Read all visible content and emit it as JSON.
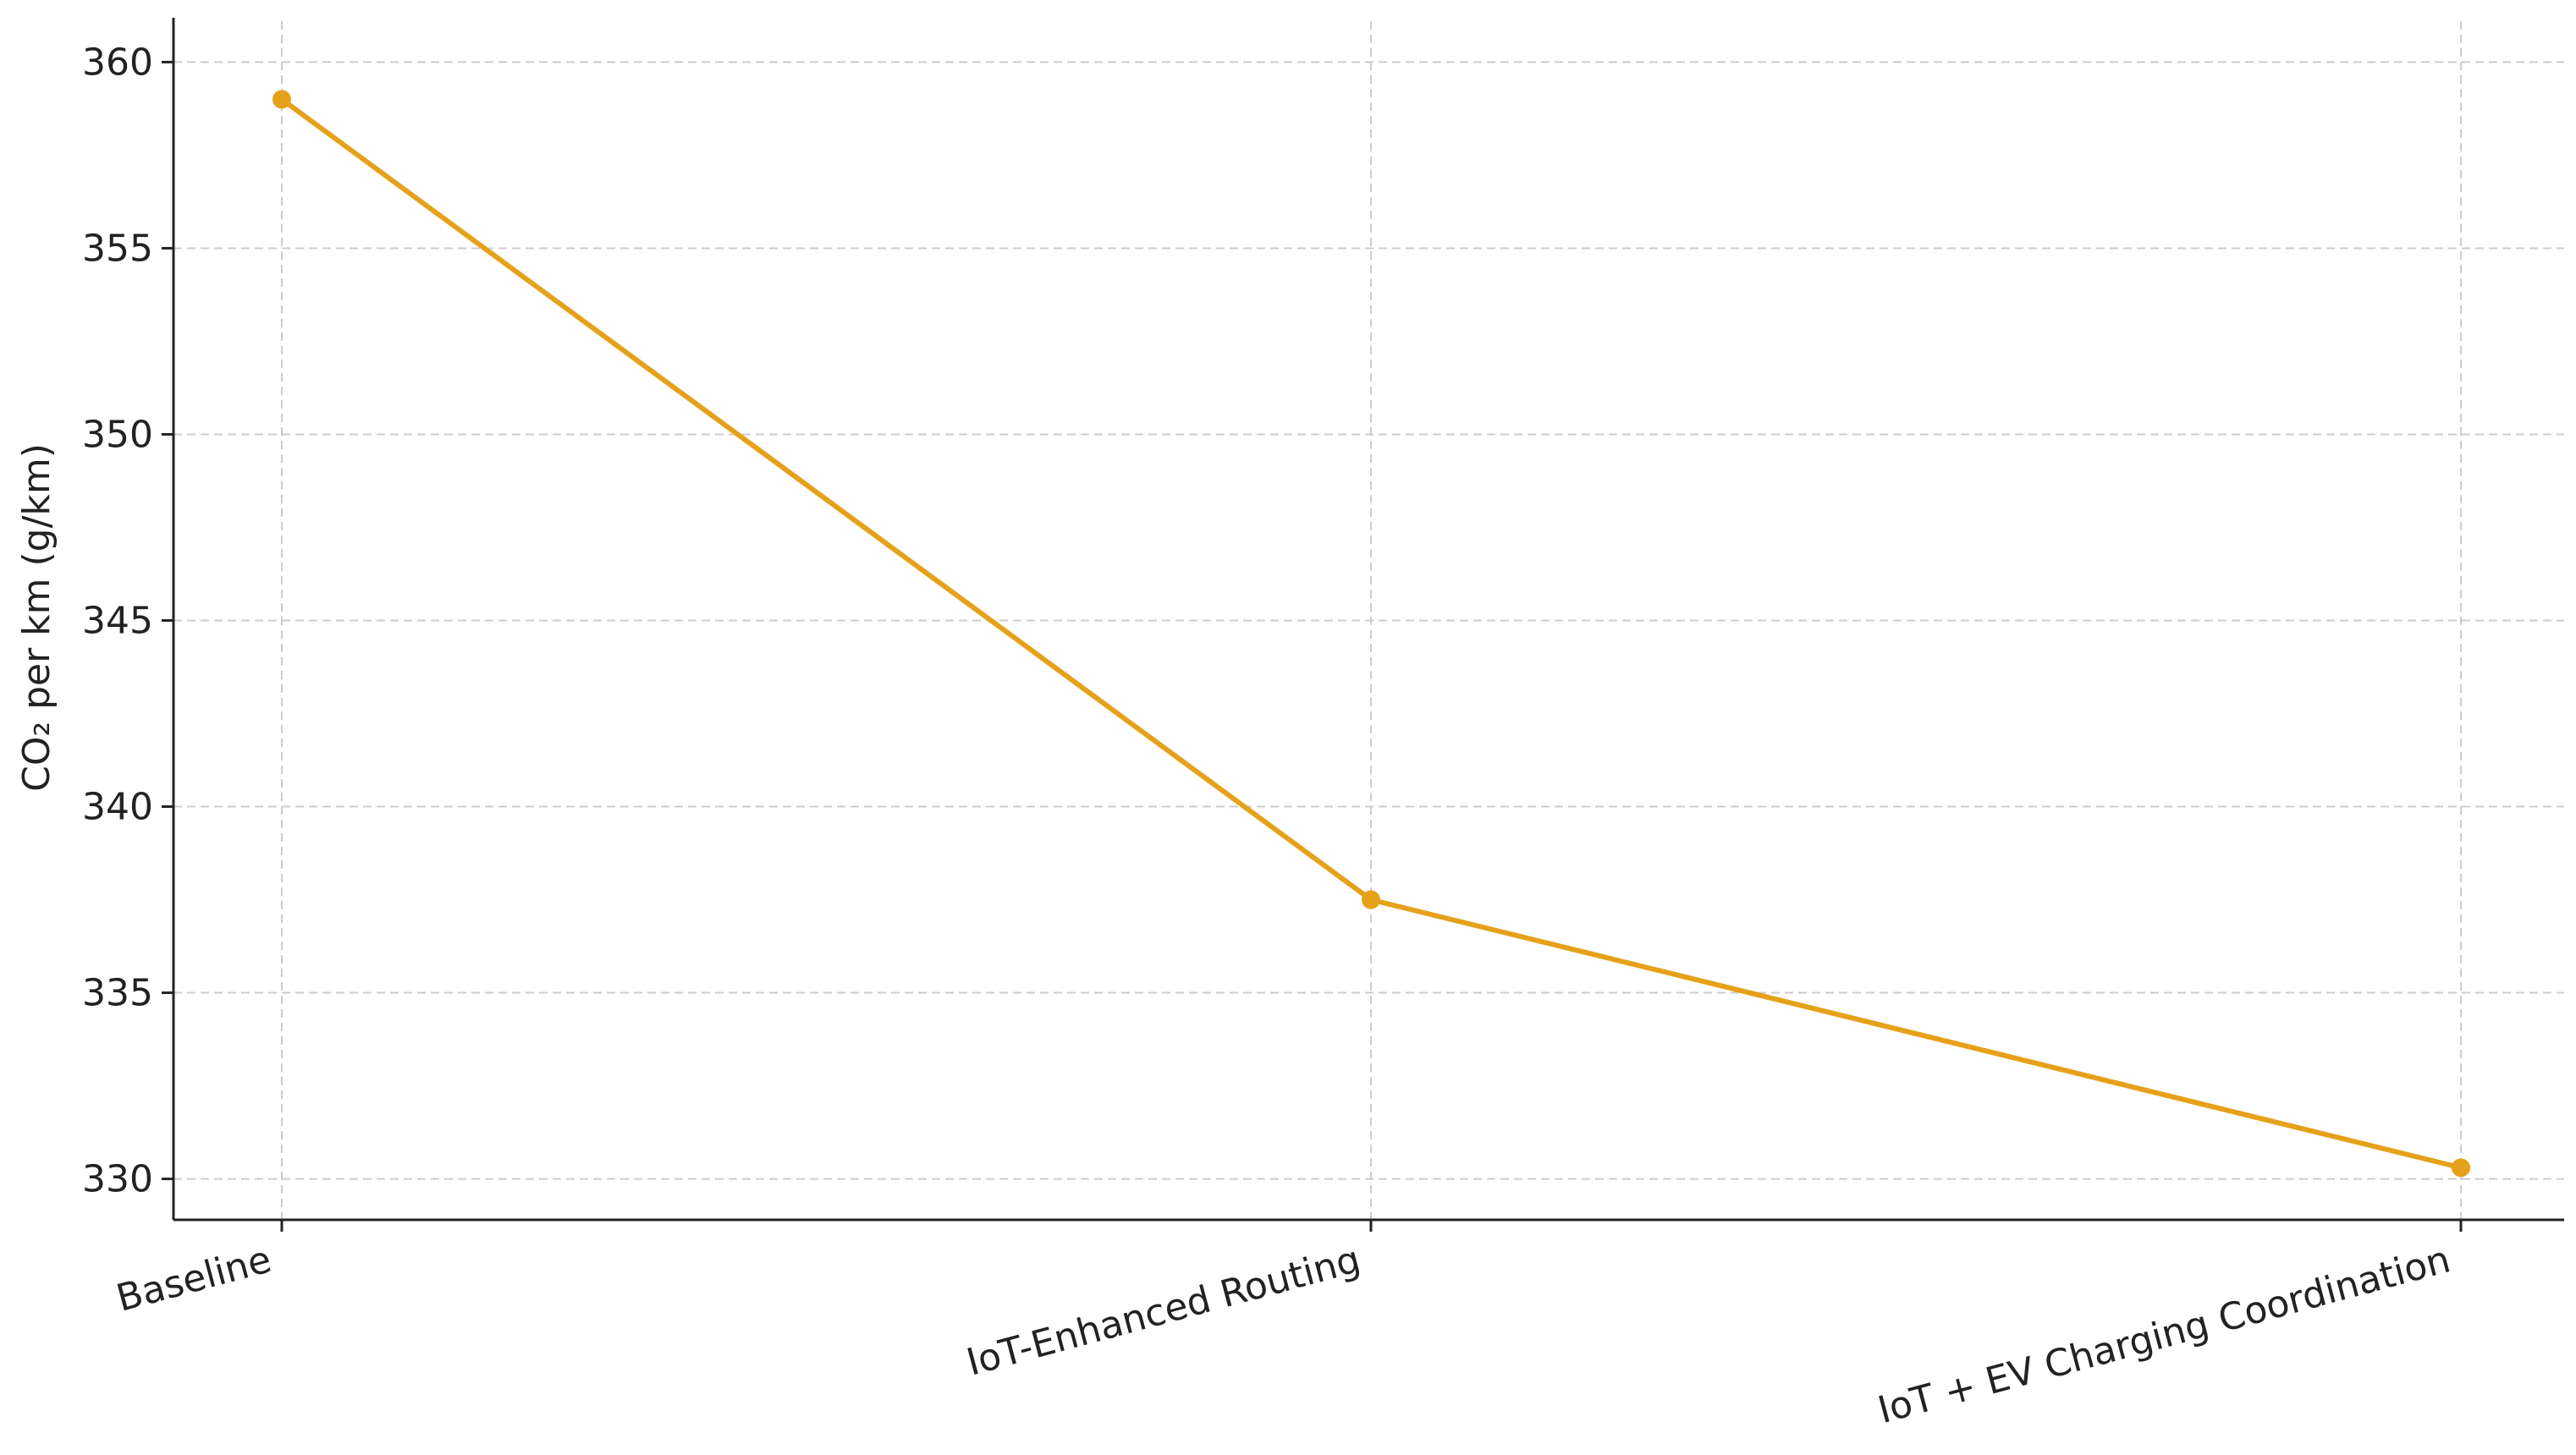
{
  "chart_data": {
    "type": "line",
    "categories": [
      "Baseline",
      "IoT-Enhanced Routing",
      "IoT + EV Charging Coordination"
    ],
    "series": [
      {
        "values": [
          359.0,
          337.5,
          330.3
        ],
        "color": "#E6A11A"
      }
    ],
    "title": "",
    "xlabel": "",
    "ylabel": "CO₂  per km (g/km)",
    "ylim": [
      328.9,
      361.1
    ],
    "yticks": [
      330,
      335,
      340,
      345,
      350,
      355,
      360
    ],
    "grid": true,
    "grid_style": "dashed",
    "legend": "none"
  }
}
